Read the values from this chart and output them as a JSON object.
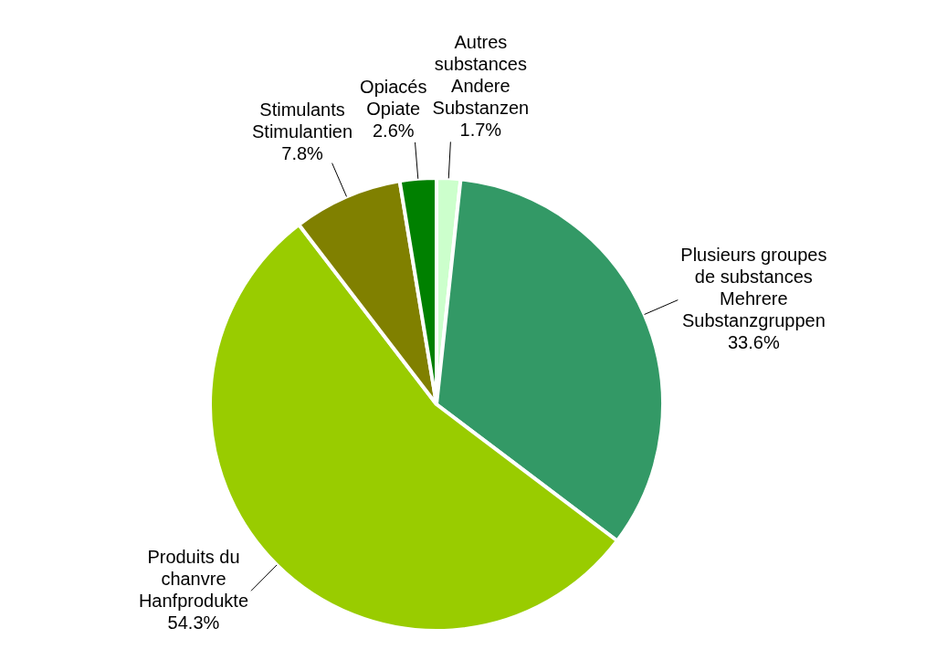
{
  "chart_data": {
    "type": "pie",
    "categories": [
      "Autres\nsubstances\nAndere\nSubstanzen",
      "Plusieurs groupes\nde substances\nMehrere\nSubstanzgruppen",
      "Produits du\nchanvre\nHanfprodukte",
      "Stimulants\nStimulantien",
      "Opiacés\nOpiate"
    ],
    "values": [
      1.7,
      33.6,
      54.3,
      7.8,
      2.6
    ],
    "value_labels": [
      "1.7%",
      "33.6%",
      "54.3%",
      "7.8%",
      "2.6%"
    ],
    "colors": [
      "#ccffcc",
      "#339966",
      "#99cc00",
      "#808000",
      "#008000"
    ],
    "legend": false
  }
}
